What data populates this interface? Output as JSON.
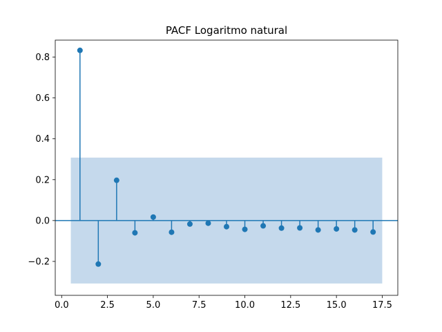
{
  "chart_data": {
    "type": "stem",
    "title": "PACF Logaritmo natural",
    "xlabel": "",
    "ylabel": "",
    "xlim": [
      -0.35,
      18.35
    ],
    "ylim": [
      -0.366,
      0.883
    ],
    "x_ticks": [
      0.0,
      2.5,
      5.0,
      7.5,
      10.0,
      12.5,
      15.0,
      17.5
    ],
    "x_tick_labels": [
      "0.0",
      "2.5",
      "5.0",
      "7.5",
      "10.0",
      "12.5",
      "15.0",
      "17.5"
    ],
    "y_ticks": [
      -0.2,
      0.0,
      0.2,
      0.4,
      0.6,
      0.8
    ],
    "y_tick_labels": [
      "−0.2",
      "0.0",
      "0.2",
      "0.4",
      "0.6",
      "0.8"
    ],
    "confidence_band": {
      "x_range": [
        0.5,
        17.5
      ],
      "lower": -0.308,
      "upper": 0.308
    },
    "grid": false,
    "series": [
      {
        "x": [
          1,
          2,
          3,
          4,
          5,
          6,
          7,
          8,
          9,
          10,
          11,
          12,
          13,
          14,
          15,
          16,
          17
        ],
        "values": [
          0.833,
          -0.213,
          0.197,
          -0.06,
          0.017,
          -0.057,
          -0.017,
          -0.013,
          -0.03,
          -0.043,
          -0.026,
          -0.037,
          -0.036,
          -0.046,
          -0.041,
          -0.046,
          -0.056
        ]
      }
    ],
    "colors": {
      "stem": "#1f77b4",
      "band": "#c5d9ec",
      "axis": "#000000"
    }
  }
}
